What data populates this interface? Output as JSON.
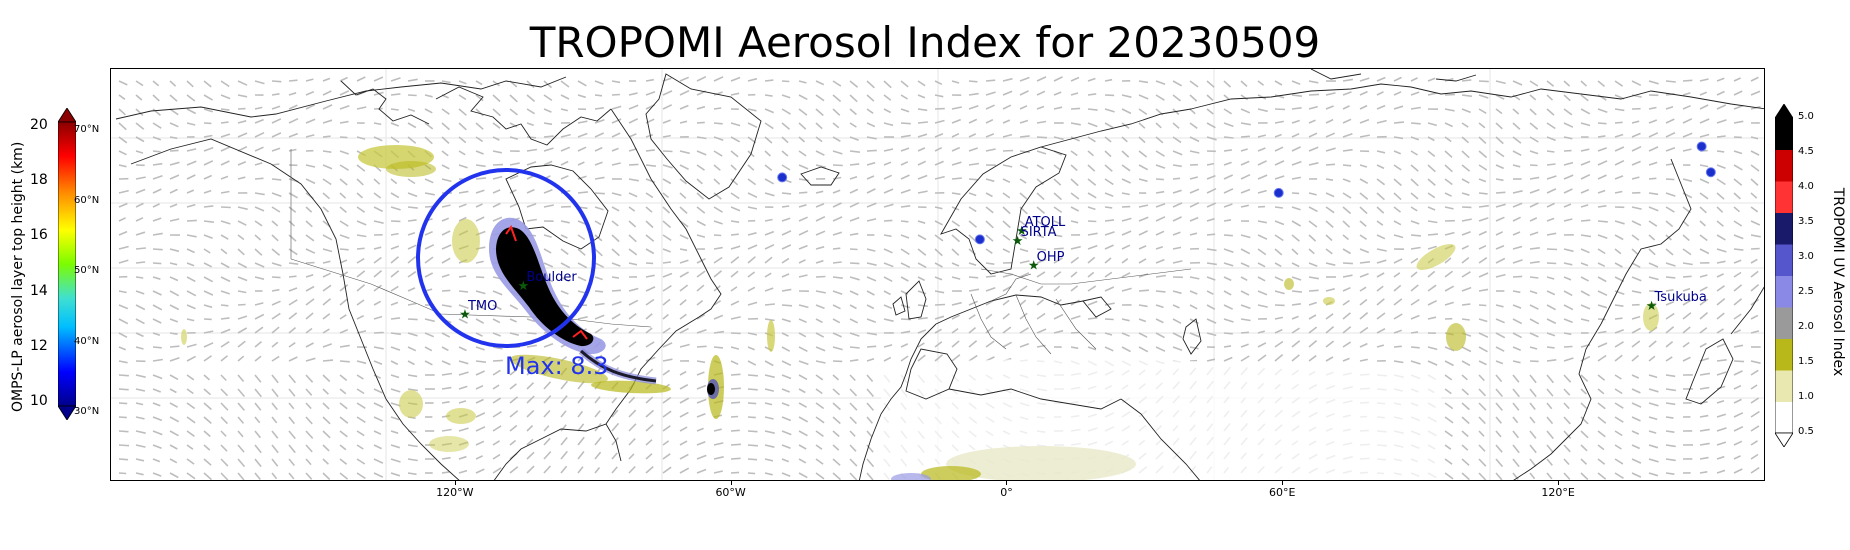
{
  "title": "TROPOMI Aerosol Index for 20230509",
  "map": {
    "projection": "plate-carree",
    "lon_range": [
      -180,
      180
    ],
    "lat_range": [
      -20,
      70
    ],
    "lon_ticks": [
      {
        "lon": -120,
        "label": "120°W"
      },
      {
        "lon": -60,
        "label": "60°W"
      },
      {
        "lon": 0,
        "label": "0°"
      },
      {
        "lon": 60,
        "label": "60°E"
      },
      {
        "lon": 120,
        "label": "120°E"
      }
    ],
    "max_annotation": "Max: 8.3",
    "circle_color": "#2233ee",
    "stations": [
      {
        "name": "TMO",
        "lon": -118,
        "lat": 34.4
      },
      {
        "name": "Boulder",
        "lon": -105.3,
        "lat": 40.0
      },
      {
        "name": "ATOLL",
        "lon": 3.1,
        "lat": 50.6
      },
      {
        "name": "SIRTA",
        "lon": 2.2,
        "lat": 48.7
      },
      {
        "name": "OHP",
        "lon": 5.7,
        "lat": 43.9
      },
      {
        "name": "Tsukuba",
        "lon": 140.1,
        "lat": 36.1
      }
    ],
    "omps_points": [
      {
        "lon": -49,
        "lat": 61
      },
      {
        "lon": -6,
        "lat": 49
      },
      {
        "lon": 59,
        "lat": 58
      },
      {
        "lon": 151,
        "lat": 67
      },
      {
        "lon": 153,
        "lat": 62
      }
    ]
  },
  "left_colorbar": {
    "label": "OMPS-LP aerosol layer top height (km)",
    "ticks": [
      "10",
      "12",
      "14",
      "16",
      "18",
      "20"
    ],
    "lat_ticks": [
      "30°N",
      "40°N",
      "50°N",
      "60°N",
      "70°N"
    ],
    "colors": [
      "#00008b",
      "#0000ff",
      "#00bfff",
      "#40e0d0",
      "#7cfc00",
      "#ffff00",
      "#ff8c00",
      "#ff0000",
      "#8b0000"
    ]
  },
  "right_colorbar": {
    "label": "TROPOMI UV Aerosol Index",
    "ticks": [
      "0.5",
      "1.0",
      "1.5",
      "2.0",
      "2.5",
      "3.0",
      "3.5",
      "4.0",
      "4.5",
      "5.0"
    ],
    "colors": [
      "#ffffff",
      "#e8e8b0",
      "#b8b81a",
      "#9a9a9a",
      "#8a8ae6",
      "#5555cc",
      "#1a1a6a",
      "#ff3333",
      "#cc0000",
      "#000000"
    ]
  }
}
